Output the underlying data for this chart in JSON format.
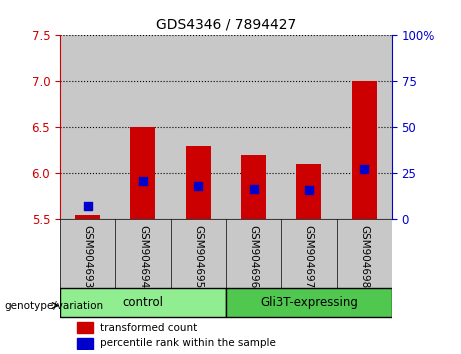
{
  "title": "GDS4346 / 7894427",
  "samples": [
    "GSM904693",
    "GSM904694",
    "GSM904695",
    "GSM904696",
    "GSM904697",
    "GSM904698"
  ],
  "red_values": [
    5.55,
    6.5,
    6.3,
    6.2,
    6.1,
    7.0
  ],
  "blue_values": [
    5.65,
    5.92,
    5.86,
    5.83,
    5.82,
    6.05
  ],
  "y_min": 5.5,
  "y_max": 7.5,
  "y_ticks": [
    5.5,
    6.0,
    6.5,
    7.0,
    7.5
  ],
  "right_y_ticks": [
    0,
    25,
    50,
    75,
    100
  ],
  "groups": [
    {
      "label": "control",
      "start": 0,
      "end": 3,
      "color": "#90ee90"
    },
    {
      "label": "Gli3T-expressing",
      "start": 3,
      "end": 6,
      "color": "#50c850"
    }
  ],
  "bar_width": 0.45,
  "bar_bottom": 5.5,
  "red_color": "#cc0000",
  "blue_color": "#0000cc",
  "column_bg_color": "#c8c8c8",
  "legend_red": "transformed count",
  "legend_blue": "percentile rank within the sample",
  "genotype_label": "genotype/variation",
  "ytick_color_left": "#cc0000",
  "ytick_color_right": "#0000cc"
}
